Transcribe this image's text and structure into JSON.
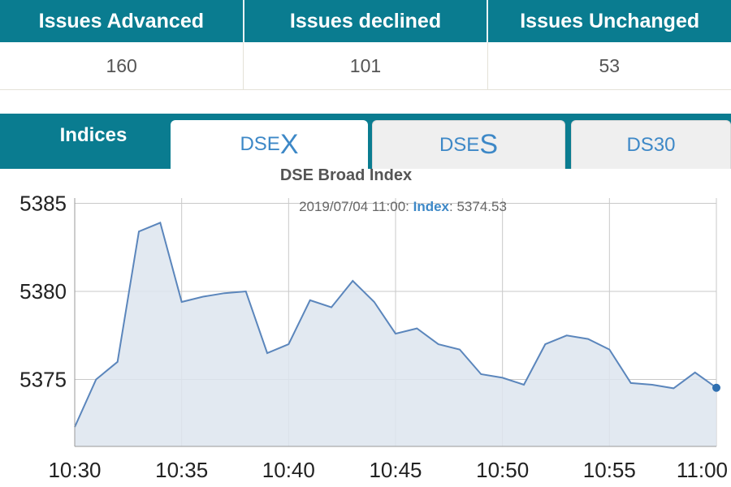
{
  "summary": {
    "headers": [
      "Issues Advanced",
      "Issues declined",
      "Issues Unchanged"
    ],
    "values": [
      "160",
      "101",
      "53"
    ]
  },
  "tabs": {
    "indices_label": "Indices",
    "items": [
      {
        "prefix": "DSE",
        "suffix": "X",
        "active": true
      },
      {
        "prefix": "DSE",
        "suffix": "S",
        "active": false
      },
      {
        "prefix": "DS30",
        "suffix": "",
        "active": false
      }
    ]
  },
  "colors": {
    "header_bg": "#0a7c90",
    "line": "#5b86bc",
    "area_fill": "#dde5ef",
    "accent_text": "#3d88c7"
  },
  "chart_data": {
    "type": "area",
    "title": "DSE Broad Index",
    "tooltip": {
      "time": "2019/07/04 11:00",
      "label": "Index",
      "value": "5374.53"
    },
    "x_tick_labels": [
      "10:30",
      "10:35",
      "10:40",
      "10:45",
      "10:50",
      "10:55",
      "11:00"
    ],
    "y_tick_labels": [
      "5385",
      "5380",
      "5375"
    ],
    "ylim": [
      5371.2,
      5385.3
    ],
    "grid": true,
    "series": [
      {
        "x": [
          "10:30",
          "10:31",
          "10:32",
          "10:33",
          "10:34",
          "10:35",
          "10:36",
          "10:37",
          "10:38",
          "10:39",
          "10:40",
          "10:41",
          "10:42",
          "10:43",
          "10:44",
          "10:45",
          "10:46",
          "10:47",
          "10:48",
          "10:49",
          "10:50",
          "10:51",
          "10:52",
          "10:53",
          "10:54",
          "10:55",
          "10:56",
          "10:57",
          "10:58",
          "10:59",
          "11:00"
        ],
        "values": [
          5372.3,
          5375.0,
          5376.0,
          5383.4,
          5383.9,
          5379.4,
          5379.7,
          5379.9,
          5380.0,
          5376.5,
          5377.0,
          5379.5,
          5379.1,
          5380.6,
          5379.4,
          5377.6,
          5377.9,
          5377.0,
          5376.7,
          5375.3,
          5375.1,
          5374.7,
          5377.0,
          5377.5,
          5377.3,
          5376.7,
          5374.8,
          5374.7,
          5374.5,
          5375.4,
          5374.53
        ]
      }
    ]
  }
}
